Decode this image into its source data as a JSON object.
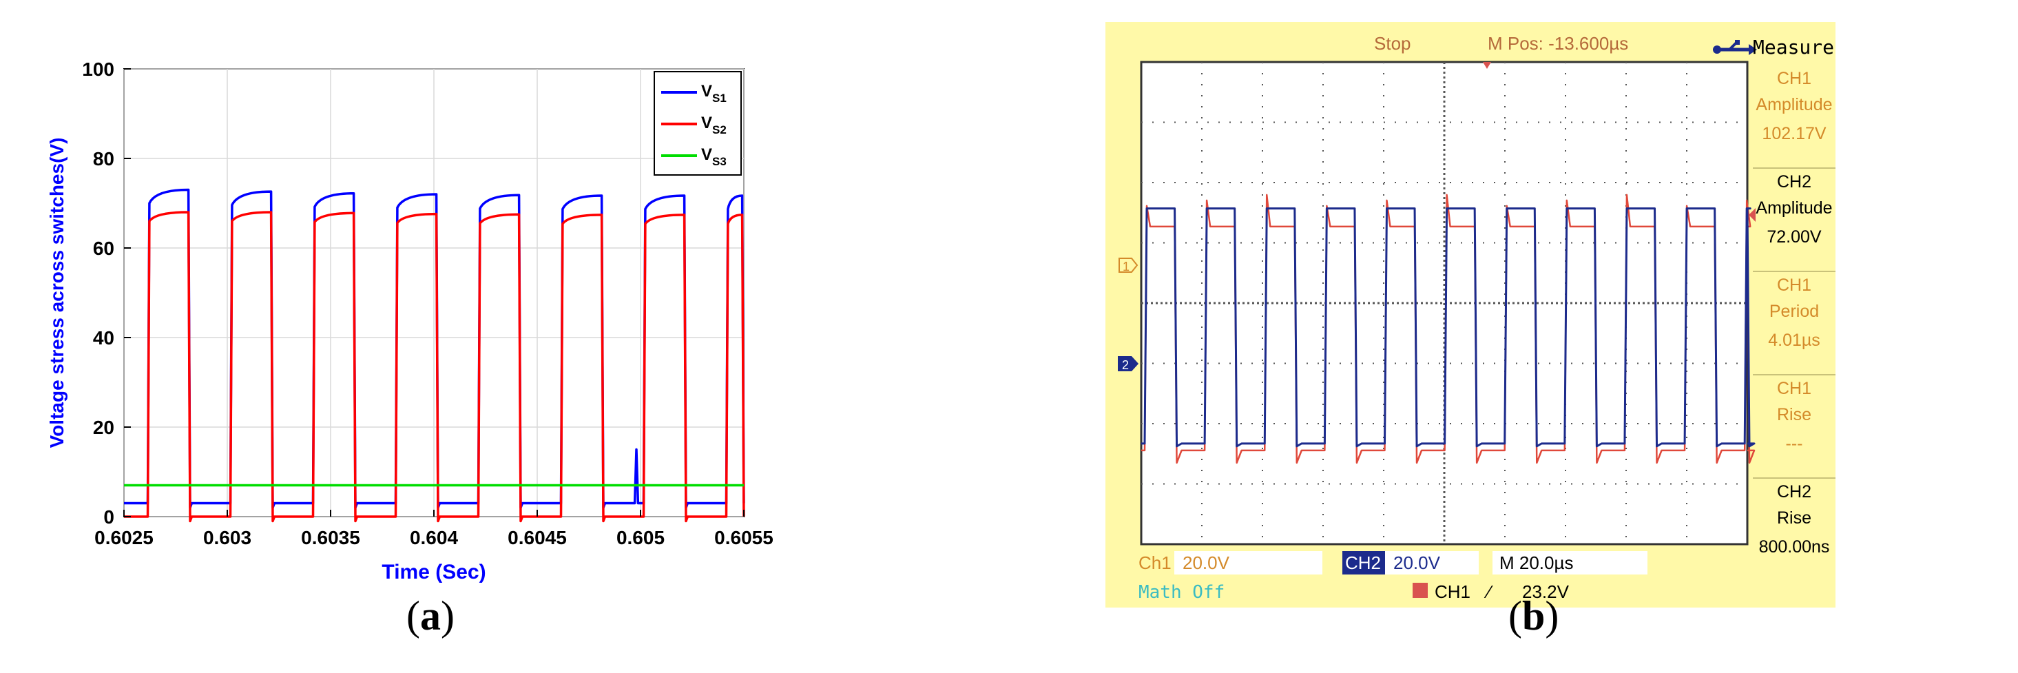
{
  "panels": {
    "a_label_open": "(",
    "a_label_letter": "a",
    "a_label_close": ")",
    "b_label_open": "(",
    "b_label_letter": "b",
    "b_label_close": ")"
  },
  "chart_data": [
    {
      "type": "line",
      "xlabel": "Time (Sec)",
      "ylabel": "Voltage stress across switches(V)",
      "xlim": [
        0.6025,
        0.6055
      ],
      "ylim": [
        0,
        100
      ],
      "xticks": [
        0.6025,
        0.603,
        0.6035,
        0.604,
        0.6045,
        0.605,
        0.6055
      ],
      "xtick_labels": [
        "0.6025",
        "0.603",
        "0.6035",
        "0.604",
        "0.6045",
        "0.605",
        "0.6055"
      ],
      "yticks": [
        0,
        20,
        40,
        60,
        80,
        100
      ],
      "ytick_labels": [
        "0",
        "20",
        "40",
        "60",
        "80",
        "100"
      ],
      "grid": true,
      "legend": "top-right",
      "legend_entries": [
        {
          "base": "V",
          "sub": "S1",
          "color": "#0000ff"
        },
        {
          "base": "V",
          "sub": "S2",
          "color": "#ff0000"
        },
        {
          "base": "V",
          "sub": "S3",
          "color": "#00dd00"
        }
      ],
      "series": [
        {
          "color": "#0000ff",
          "period": 0.0004,
          "first_rise": 0.602615,
          "on_duration": 0.000205,
          "on_start": 70,
          "on_end": 73,
          "off_level": 3,
          "on_end_trend": [
            73,
            72.6,
            72.2,
            72,
            71.8,
            71.7,
            71.7,
            71.7,
            71.8,
            71.9,
            72,
            72
          ],
          "spike": {
            "x": 0.60498,
            "y": 15
          }
        },
        {
          "color": "#ff0000",
          "period": 0.0004,
          "first_rise": 0.602615,
          "on_duration": 0.000205,
          "on_start": 66,
          "on_end": 68,
          "off_level": 0,
          "on_end_trend": [
            68,
            68,
            67.8,
            67.6,
            67.5,
            67.4,
            67.4,
            67.4,
            67.5,
            67.5,
            67.5,
            67.5
          ]
        },
        {
          "color": "#00dd00",
          "constant": 7
        }
      ]
    },
    {
      "type": "line",
      "note": "oscilloscope capture",
      "status": "Stop",
      "mpos": "M Pos: -13.600µs",
      "measure_title": "Measure",
      "measurements": [
        {
          "ch": "CH1",
          "name": "Amplitude",
          "value": "102.17V"
        },
        {
          "ch": "CH2",
          "name": "Amplitude",
          "value": "72.00V"
        },
        {
          "ch": "CH1",
          "name": "Period",
          "value": "4.01µs"
        },
        {
          "ch": "CH1",
          "name": "Rise",
          "value": "---"
        },
        {
          "ch": "CH2",
          "name": "Rise",
          "value": "800.00ns"
        }
      ],
      "ch1_label": "Ch1",
      "ch1_scale": "20.0V",
      "ch2_label": "CH2",
      "ch2_scale": "20.0V",
      "time_scale": "M 20.0µs",
      "math": "Math Off",
      "trigger_ch": "CH1",
      "trigger_slope": "∕",
      "trigger_level": "23.2V",
      "marker1": "1",
      "marker2": "2",
      "grid_divisions": [
        10,
        8
      ],
      "series": [
        {
          "name": "CH1",
          "color": "#e0483a",
          "period_div": 0.99,
          "high_div": 3.5,
          "low_div": -0.6
        },
        {
          "name": "CH2",
          "color": "#1c2b8c",
          "period_div": 0.99,
          "high_div": 3.8,
          "low_div": -0.45
        }
      ]
    }
  ]
}
